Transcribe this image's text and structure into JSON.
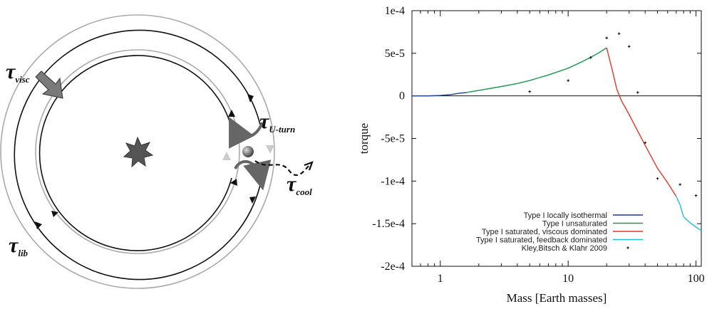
{
  "diagram": {
    "labels": {
      "visc": {
        "tau": "τ",
        "sub": "visc"
      },
      "uturn": {
        "tau": "τ",
        "sub": "U-turn"
      },
      "cool": {
        "tau": "τ",
        "sub": "cool"
      },
      "lib": {
        "tau": "τ",
        "sub": "lib"
      }
    },
    "colors": {
      "rings": "#aaaaaa",
      "orbits": "#111111",
      "arrow": "#777777",
      "star": "#555555"
    }
  },
  "chart_data": {
    "type": "line",
    "x_scale": "log",
    "xlim": [
      0.6,
      110
    ],
    "ylim": [
      -0.0002,
      0.0001
    ],
    "xlabel": "Mass [Earth masses]",
    "ylabel": "torque",
    "x_ticks": [
      {
        "value": 1,
        "label": "1"
      },
      {
        "value": 10,
        "label": "10"
      },
      {
        "value": 100,
        "label": "100"
      }
    ],
    "y_ticks": [
      {
        "value": 0.0001,
        "label": "1e-4"
      },
      {
        "value": 5e-05,
        "label": "5e-5"
      },
      {
        "value": 0,
        "label": "0"
      },
      {
        "value": -5e-05,
        "label": "-5e-5"
      },
      {
        "value": -0.0001,
        "label": "-1e-4"
      },
      {
        "value": -0.00015,
        "label": "-1.5e-4"
      },
      {
        "value": -0.0002,
        "label": "-2e-4"
      }
    ],
    "zero_line": true,
    "legend_position": "bottom-right",
    "series": [
      {
        "name": "Type I locally isothermal",
        "color": "#1f3b8c",
        "kind": "line",
        "x": [
          0.6,
          0.8,
          1.0,
          1.2,
          1.4,
          1.6
        ],
        "y": [
          0.0,
          0.0,
          5e-07,
          1.5e-06,
          3e-06,
          4e-06
        ]
      },
      {
        "name": "Type I unsaturated",
        "color": "#1a9850",
        "kind": "line",
        "x": [
          1.6,
          2,
          3,
          4,
          5,
          7,
          10,
          13,
          16,
          18,
          20
        ],
        "y": [
          4e-06,
          6.5e-06,
          1.1e-05,
          1.45e-05,
          1.8e-05,
          2.45e-05,
          3.25e-05,
          4.05e-05,
          4.75e-05,
          5.2e-05,
          5.65e-05
        ]
      },
      {
        "name": "Type I saturated, viscous dominated",
        "color": "#e8352a",
        "kind": "line",
        "x": [
          20,
          22,
          24,
          26,
          30,
          40,
          50,
          60,
          70
        ],
        "y": [
          5.65e-05,
          3.2e-05,
          8e-06,
          -5e-06,
          -2.2e-05,
          -5.8e-05,
          -8.5e-05,
          -0.000102,
          -0.000118
        ]
      },
      {
        "name": "Type I saturated, feedback dominated",
        "color": "#1fc0d6",
        "kind": "line",
        "x": [
          70,
          75,
          80,
          90,
          100,
          110
        ],
        "y": [
          -0.000118,
          -0.000128,
          -0.000142,
          -0.000149,
          -0.000154,
          -0.000158
        ]
      },
      {
        "name": "Kley,Bitsch & Klahr 2009",
        "color": "#000000",
        "kind": "points",
        "x": [
          5,
          10,
          15,
          20,
          25,
          30,
          35,
          40,
          50,
          75,
          100
        ],
        "y": [
          5e-06,
          1.8e-05,
          4.5e-05,
          6.8e-05,
          7.3e-05,
          5.8e-05,
          4e-06,
          -5.5e-05,
          -9.7e-05,
          -0.000104,
          -0.000117
        ]
      }
    ]
  }
}
